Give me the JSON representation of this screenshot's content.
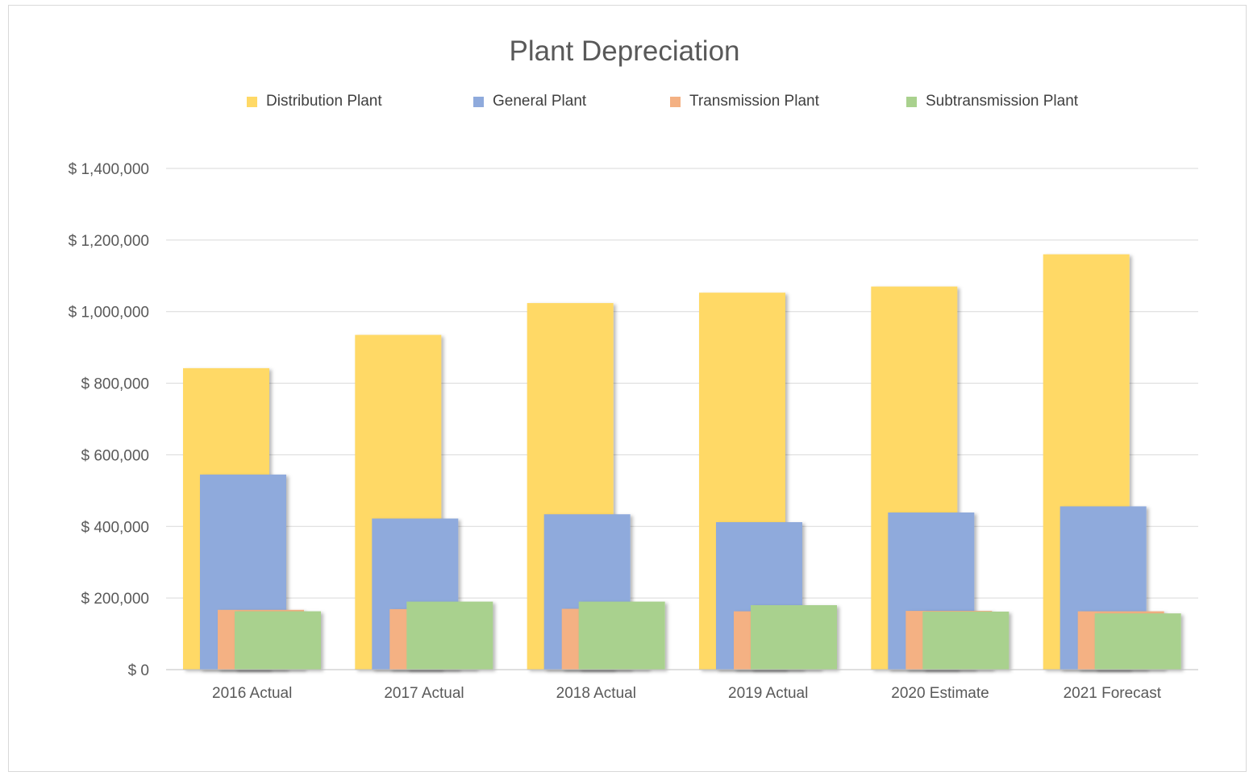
{
  "chart_data": {
    "type": "bar",
    "title": "Plant Depreciation",
    "xlabel": "",
    "ylabel": "",
    "categories": [
      "2016 Actual",
      "2017 Actual",
      "2018 Actual",
      "2019 Actual",
      "2020 Estimate",
      "2021 Forecast"
    ],
    "series": [
      {
        "name": "Distribution Plant",
        "color": "#FFD966",
        "values": [
          842000,
          935000,
          1024000,
          1053000,
          1070000,
          1160000
        ]
      },
      {
        "name": "General Plant",
        "color": "#8FAADC",
        "values": [
          545000,
          422000,
          434000,
          412000,
          439000,
          456000
        ]
      },
      {
        "name": "Transmission Plant",
        "color": "#F4B183",
        "values": [
          167000,
          169000,
          170000,
          163000,
          164000,
          163000
        ]
      },
      {
        "name": "Subtransmission Plant",
        "color": "#A9D18E",
        "values": [
          163000,
          190000,
          190000,
          180000,
          162000,
          157000
        ]
      }
    ],
    "ylim": [
      0,
      1400000
    ],
    "yticks": [
      0,
      200000,
      400000,
      600000,
      800000,
      1000000,
      1200000,
      1400000
    ],
    "ytick_labels": [
      "$ 0",
      "$ 200,000",
      "$ 400,000",
      "$ 600,000",
      "$ 800,000",
      "$ 1,000,000",
      "$ 1,200,000",
      "$ 1,400,000"
    ],
    "grid": true,
    "legend_position": "top"
  }
}
